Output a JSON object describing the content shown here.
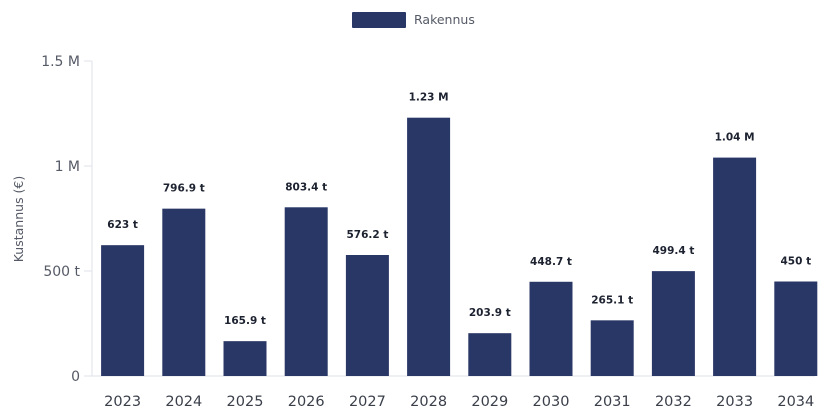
{
  "chart_data": {
    "type": "bar",
    "categories": [
      "2023",
      "2024",
      "2025",
      "2026",
      "2027",
      "2028",
      "2029",
      "2030",
      "2031",
      "2032",
      "2033",
      "2034"
    ],
    "series": [
      {
        "name": "Rakennus",
        "values": [
          623000,
          796900,
          165900,
          803400,
          576200,
          1230000,
          203900,
          448700,
          265100,
          499400,
          1040000,
          450000
        ],
        "data_labels": [
          "623 t",
          "796.9 t",
          "165.9 t",
          "803.4 t",
          "576.2 t",
          "1.23 M",
          "203.9 t",
          "448.7 t",
          "265.1 t",
          "499.4 t",
          "1.04 M",
          "450 t"
        ],
        "color": "#293766"
      }
    ],
    "ylabel": "Kustannus (€)",
    "xlabel": "",
    "ylim": [
      0,
      1500000
    ],
    "yticks": [
      0,
      500000,
      1000000,
      1500000
    ],
    "ytick_labels": [
      "0",
      "500 t",
      "1 M",
      "1.5 M"
    ],
    "legend_position": "top-center",
    "grid": "none",
    "axis_line_color": "#dfe2e8"
  }
}
